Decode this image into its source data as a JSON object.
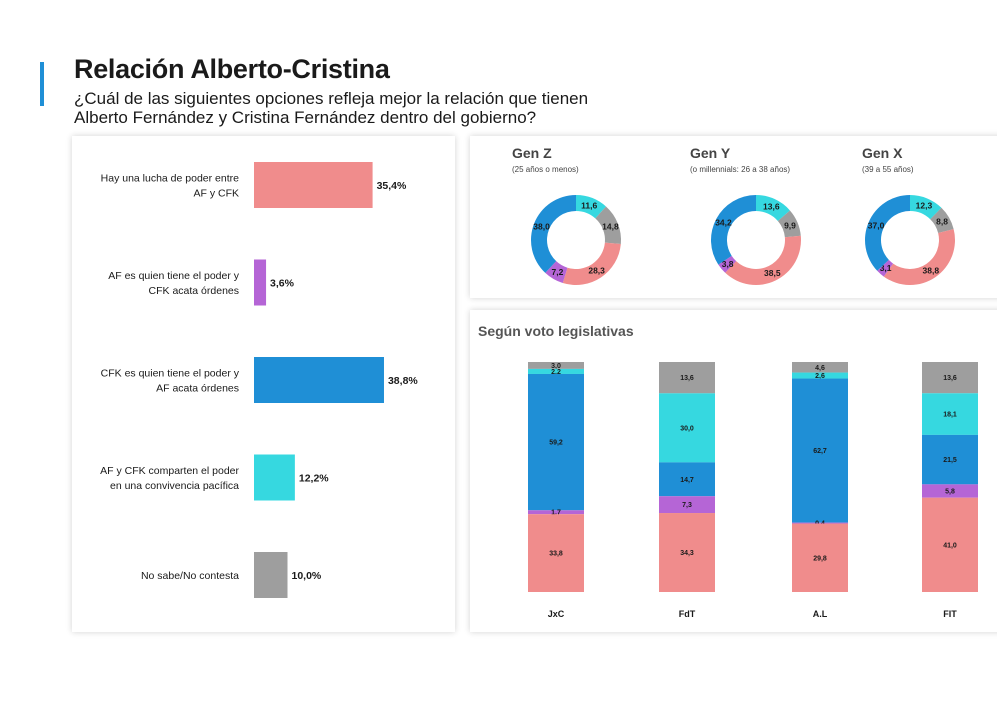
{
  "header": {
    "title": "Relación Alberto-Cristina",
    "subtitle_line1": "¿Cuál de las siguientes opciones refleja mejor la relación que tienen",
    "subtitle_line2": "Alberto Fernández y Cristina Fernández dentro del gobierno?"
  },
  "colors": {
    "lucha": "#f08c8c",
    "af_poder": "#b565d6",
    "cfk_poder": "#1f8fd6",
    "convivencia": "#36d8e0",
    "nsnc": "#9e9e9e",
    "accent": "#1f8fd6"
  },
  "chart_data": [
    {
      "type": "bar",
      "orientation": "horizontal",
      "categories": [
        [
          "Hay una lucha de poder entre",
          "AF y CFK"
        ],
        [
          "AF es quien tiene el poder y",
          "CFK acata órdenes"
        ],
        [
          "CFK es quien tiene el poder y",
          "AF acata órdenes"
        ],
        [
          "AF y CFK  comparten el poder",
          "en una convivencia pacífica"
        ],
        [
          "No sabe/No contesta"
        ]
      ],
      "values": [
        35.4,
        3.6,
        38.8,
        12.2,
        10.0
      ],
      "value_labels": [
        "35,4%",
        "3,6%",
        "38,8%",
        "12,2%",
        "10,0%"
      ],
      "colors": [
        "#f08c8c",
        "#b565d6",
        "#1f8fd6",
        "#36d8e0",
        "#9e9e9e"
      ]
    },
    {
      "type": "pie",
      "variant": "donut",
      "charts": [
        {
          "title": "Gen Z",
          "subtitle": "(25 años o menos)",
          "slices": [
            {
              "key": "convivencia",
              "value": 11.6,
              "label": "11,6"
            },
            {
              "key": "nsnc",
              "value": 14.8,
              "label": "14,8"
            },
            {
              "key": "lucha",
              "value": 28.3,
              "label": "28,3"
            },
            {
              "key": "af_poder",
              "value": 7.2,
              "label": "7,2"
            },
            {
              "key": "cfk_poder",
              "value": 38.0,
              "label": "38,0"
            }
          ]
        },
        {
          "title": "Gen Y",
          "subtitle": "(o millennials: 26 a 38 años)",
          "slices": [
            {
              "key": "convivencia",
              "value": 13.6,
              "label": "13,6"
            },
            {
              "key": "nsnc",
              "value": 9.9,
              "label": "9,9"
            },
            {
              "key": "lucha",
              "value": 38.5,
              "label": "38,5"
            },
            {
              "key": "af_poder",
              "value": 3.8,
              "label": "3,8"
            },
            {
              "key": "cfk_poder",
              "value": 34.2,
              "label": "34,2"
            }
          ]
        },
        {
          "title": "Gen X",
          "subtitle": "(39 a 55 años)",
          "slices": [
            {
              "key": "convivencia",
              "value": 12.3,
              "label": "12,3"
            },
            {
              "key": "nsnc",
              "value": 8.8,
              "label": "8,8"
            },
            {
              "key": "lucha",
              "value": 38.8,
              "label": "38,8"
            },
            {
              "key": "af_poder",
              "value": 3.1,
              "label": "3,1"
            },
            {
              "key": "cfk_poder",
              "value": 37.0,
              "label": "37,0"
            }
          ]
        }
      ]
    },
    {
      "type": "bar",
      "variant": "stacked-100",
      "title": "Según voto legislativas",
      "categories": [
        "JxC",
        "FdT",
        "A.L",
        "FIT"
      ],
      "stack_order_top_to_bottom": [
        "nsnc",
        "convivencia",
        "cfk_poder",
        "af_poder",
        "lucha"
      ],
      "series": [
        {
          "key": "nsnc",
          "values": [
            3.0,
            13.6,
            4.6,
            13.6
          ],
          "labels": [
            "3,0",
            "13,6",
            "4,6",
            "13,6"
          ]
        },
        {
          "key": "convivencia",
          "values": [
            2.2,
            30.0,
            2.6,
            18.1
          ],
          "labels": [
            "2,2",
            "30,0",
            "2,6",
            "18,1"
          ]
        },
        {
          "key": "cfk_poder",
          "values": [
            59.2,
            14.7,
            62.7,
            21.5
          ],
          "labels": [
            "59,2",
            "14,7",
            "62,7",
            "21,5"
          ]
        },
        {
          "key": "af_poder",
          "values": [
            1.7,
            7.3,
            0.4,
            5.8
          ],
          "labels": [
            "1,7",
            "7,3",
            "0,4",
            "5,8"
          ]
        },
        {
          "key": "lucha",
          "values": [
            33.8,
            34.3,
            29.8,
            41.0
          ],
          "labels": [
            "33,8",
            "34,3",
            "29,8",
            "41,0"
          ]
        }
      ]
    }
  ]
}
